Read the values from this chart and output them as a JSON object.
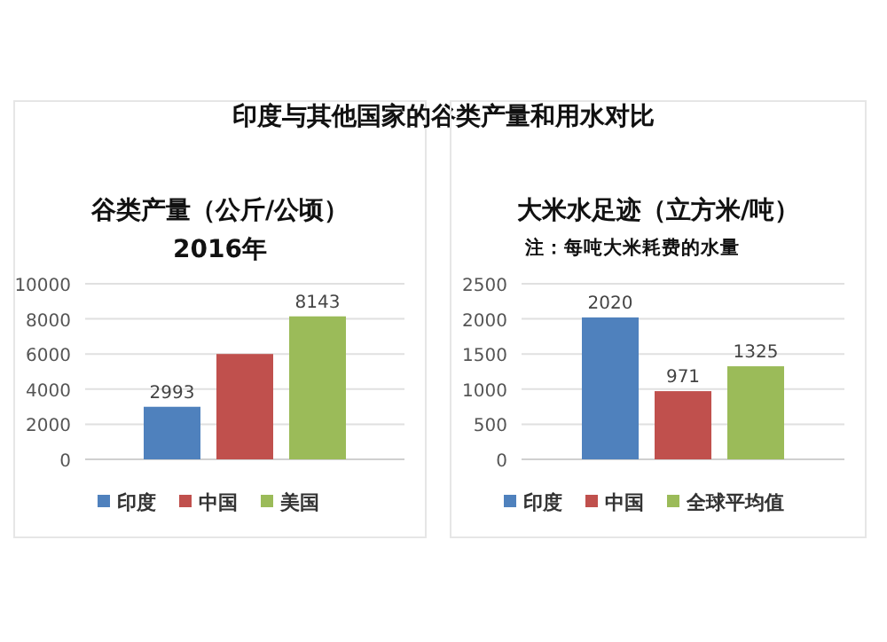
{
  "chart_data": [
    {
      "type": "bar",
      "title": "谷类产量（公斤/公顷）",
      "subtitle": "2016年",
      "annotations": [
        "印度与其他国家的谷类产量和用水对比"
      ],
      "categories": [
        null
      ],
      "ylim": [
        0,
        10000
      ],
      "yticks": [
        0,
        2000,
        4000,
        6000,
        8000,
        10000
      ],
      "grid": "y",
      "legend": "bottom",
      "series": [
        {
          "name": "印度",
          "color": "#4f81bd",
          "values": [
            2993
          ],
          "value_labels": [
            "2993"
          ]
        },
        {
          "name": "中国",
          "color": "#c0504d",
          "values": [
            6000
          ],
          "value_labels": [
            null
          ]
        },
        {
          "name": "美国",
          "color": "#9bbb59",
          "values": [
            8143
          ],
          "value_labels": [
            "8143"
          ]
        }
      ]
    },
    {
      "type": "bar",
      "title": "大米水足迹（立方米/吨）",
      "annotations": [
        "注：每吨大米耗费的水量"
      ],
      "categories": [
        null
      ],
      "ylim": [
        0,
        2500
      ],
      "yticks": [
        0,
        500,
        1000,
        1500,
        2000,
        2500
      ],
      "grid": "y",
      "legend": "bottom",
      "series": [
        {
          "name": "印度",
          "color": "#4f81bd",
          "values": [
            2020
          ],
          "value_labels": [
            "2020"
          ]
        },
        {
          "name": "中国",
          "color": "#c0504d",
          "values": [
            971
          ],
          "value_labels": [
            "971"
          ]
        },
        {
          "name": "全球平均值",
          "color": "#9bbb59",
          "values": [
            1325
          ],
          "value_labels": [
            "1325"
          ]
        }
      ]
    }
  ]
}
